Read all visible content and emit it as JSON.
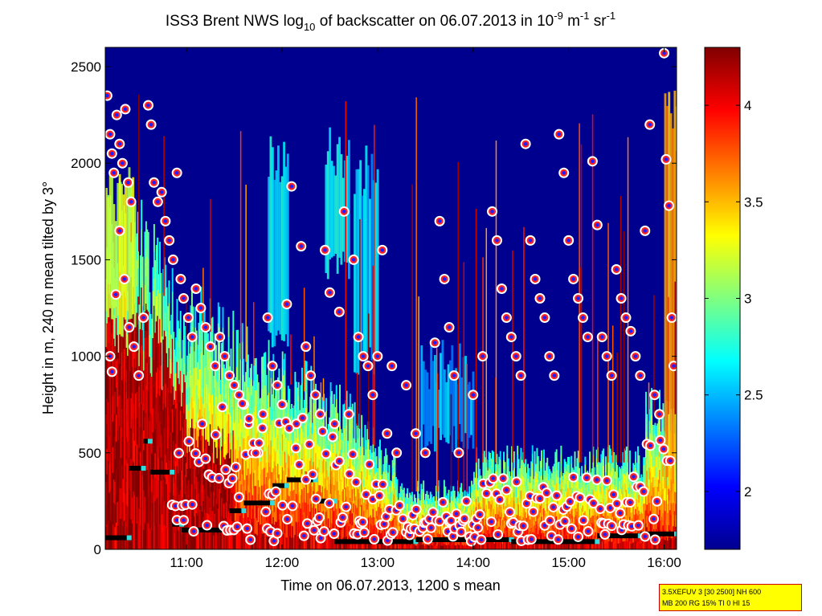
{
  "chart_data": {
    "type": "heatmap",
    "title": {
      "prefix": "ISS3 Brent NWS log",
      "sub": "10",
      "middle": " of backscatter on 06.07.2013 in 10",
      "sup1": "-9",
      "unit_m": " m",
      "sup2": "-1",
      "unit_sr": " sr",
      "sup3": "-1"
    },
    "xlabel": "Time on 06.07.2013, 1200 s mean",
    "ylabel": "Height in m, 240 m mean tilted by 3°",
    "x_range_hours": [
      10.15,
      16.13
    ],
    "x_ticks": [
      {
        "value": 11,
        "label": "11:00"
      },
      {
        "value": 12,
        "label": "12:00"
      },
      {
        "value": 13,
        "label": "13:00"
      },
      {
        "value": 14,
        "label": "14:00"
      },
      {
        "value": 15,
        "label": "15:00"
      },
      {
        "value": 16,
        "label": "16:00"
      }
    ],
    "ylim": [
      0,
      2600
    ],
    "y_ticks": [
      0,
      500,
      1000,
      1500,
      2000,
      2500
    ],
    "colorbar": {
      "range": [
        1.7,
        4.3
      ],
      "ticks": [
        2,
        2.5,
        3,
        3.5,
        4
      ],
      "tick_labels": [
        "2",
        "2.5",
        "3",
        "3.5",
        "4"
      ],
      "colormap": "jet"
    },
    "mixing_layer_steps": [
      {
        "x0": 10.15,
        "x1": 10.4,
        "y": 60
      },
      {
        "x0": 10.4,
        "x1": 10.55,
        "y": 420
      },
      {
        "x0": 10.55,
        "x1": 10.62,
        "y": 560
      },
      {
        "x0": 10.62,
        "x1": 10.85,
        "y": 400
      },
      {
        "x0": 10.85,
        "x1": 10.95,
        "y": 130
      },
      {
        "x0": 10.95,
        "x1": 11.45,
        "y": 100
      },
      {
        "x0": 11.45,
        "x1": 11.6,
        "y": 200
      },
      {
        "x0": 11.6,
        "x1": 11.9,
        "y": 240
      },
      {
        "x0": 11.9,
        "x1": 12.05,
        "y": 330
      },
      {
        "x0": 12.05,
        "x1": 12.35,
        "y": 360
      },
      {
        "x0": 12.35,
        "x1": 12.55,
        "y": 250
      },
      {
        "x0": 12.55,
        "x1": 13.4,
        "y": 40
      },
      {
        "x0": 13.4,
        "x1": 14.4,
        "y": 50
      },
      {
        "x0": 14.4,
        "x1": 15.3,
        "y": 40
      },
      {
        "x0": 15.3,
        "x1": 15.75,
        "y": 70
      },
      {
        "x0": 15.75,
        "x1": 16.13,
        "y": 80
      }
    ],
    "cloud_markers": [
      [
        10.17,
        2350
      ],
      [
        10.2,
        2150
      ],
      [
        10.22,
        2050
      ],
      [
        10.24,
        1950
      ],
      [
        10.27,
        2250
      ],
      [
        10.3,
        2100
      ],
      [
        10.33,
        2000
      ],
      [
        10.36,
        2280
      ],
      [
        10.39,
        1900
      ],
      [
        10.42,
        1800
      ],
      [
        10.2,
        1000
      ],
      [
        10.22,
        920
      ],
      [
        10.26,
        1320
      ],
      [
        10.3,
        1650
      ],
      [
        10.35,
        1400
      ],
      [
        10.4,
        1150
      ],
      [
        10.45,
        1050
      ],
      [
        10.5,
        900
      ],
      [
        10.55,
        1200
      ],
      [
        10.6,
        2300
      ],
      [
        10.63,
        2200
      ],
      [
        10.66,
        1900
      ],
      [
        10.7,
        1800
      ],
      [
        10.74,
        1850
      ],
      [
        10.78,
        1700
      ],
      [
        10.82,
        1600
      ],
      [
        10.86,
        1500
      ],
      [
        10.9,
        1950
      ],
      [
        10.94,
        1400
      ],
      [
        10.97,
        1300
      ],
      [
        11.02,
        1200
      ],
      [
        11.06,
        1100
      ],
      [
        11.1,
        1350
      ],
      [
        11.15,
        1250
      ],
      [
        11.2,
        1150
      ],
      [
        11.25,
        1050
      ],
      [
        11.3,
        950
      ],
      [
        11.35,
        1100
      ],
      [
        11.4,
        1000
      ],
      [
        11.45,
        900
      ],
      [
        11.5,
        850
      ],
      [
        11.55,
        800
      ],
      [
        11.6,
        750
      ],
      [
        11.65,
        650
      ],
      [
        11.7,
        550
      ],
      [
        11.75,
        500
      ],
      [
        11.8,
        700
      ],
      [
        11.85,
        1200
      ],
      [
        11.9,
        950
      ],
      [
        11.95,
        850
      ],
      [
        12.0,
        750
      ],
      [
        12.05,
        1270
      ],
      [
        12.1,
        1880
      ],
      [
        12.15,
        650
      ],
      [
        12.2,
        1570
      ],
      [
        12.25,
        1050
      ],
      [
        12.3,
        900
      ],
      [
        12.35,
        800
      ],
      [
        12.4,
        700
      ],
      [
        12.45,
        1550
      ],
      [
        12.5,
        1330
      ],
      [
        12.55,
        650
      ],
      [
        12.6,
        1230
      ],
      [
        12.65,
        1750
      ],
      [
        12.7,
        700
      ],
      [
        12.75,
        1500
      ],
      [
        12.8,
        1100
      ],
      [
        12.85,
        1000
      ],
      [
        12.9,
        950
      ],
      [
        12.95,
        800
      ],
      [
        13.0,
        1000
      ],
      [
        13.05,
        1550
      ],
      [
        13.1,
        600
      ],
      [
        13.15,
        950
      ],
      [
        13.2,
        500
      ],
      [
        13.3,
        850
      ],
      [
        13.4,
        600
      ],
      [
        13.5,
        500
      ],
      [
        13.6,
        1070
      ],
      [
        13.65,
        1700
      ],
      [
        13.7,
        1400
      ],
      [
        13.75,
        1150
      ],
      [
        13.8,
        900
      ],
      [
        13.85,
        500
      ],
      [
        14.0,
        800
      ],
      [
        14.1,
        1000
      ],
      [
        14.2,
        1750
      ],
      [
        14.25,
        1600
      ],
      [
        14.3,
        1350
      ],
      [
        14.35,
        1200
      ],
      [
        14.4,
        1100
      ],
      [
        14.45,
        1000
      ],
      [
        14.5,
        900
      ],
      [
        14.55,
        2100
      ],
      [
        14.6,
        1600
      ],
      [
        14.65,
        1400
      ],
      [
        14.7,
        1300
      ],
      [
        14.75,
        1200
      ],
      [
        14.8,
        1000
      ],
      [
        14.85,
        900
      ],
      [
        14.9,
        2150
      ],
      [
        14.95,
        1950
      ],
      [
        15.0,
        1600
      ],
      [
        15.05,
        1400
      ],
      [
        15.1,
        1300
      ],
      [
        15.15,
        1200
      ],
      [
        15.2,
        1100
      ],
      [
        15.25,
        2010
      ],
      [
        15.3,
        1680
      ],
      [
        15.35,
        1100
      ],
      [
        15.4,
        1000
      ],
      [
        15.45,
        900
      ],
      [
        15.5,
        1450
      ],
      [
        15.55,
        1300
      ],
      [
        15.6,
        1200
      ],
      [
        15.65,
        1130
      ],
      [
        15.7,
        1000
      ],
      [
        15.75,
        900
      ],
      [
        15.8,
        1650
      ],
      [
        15.85,
        2200
      ],
      [
        15.9,
        800
      ],
      [
        15.95,
        700
      ],
      [
        16.0,
        2570
      ],
      [
        16.02,
        2020
      ],
      [
        16.05,
        1780
      ],
      [
        16.08,
        1200
      ],
      [
        16.1,
        950
      ]
    ],
    "low_markers_hint": "dense cloud-base / aerosol markers 0-700 m"
  },
  "info_box": {
    "line1": "3.5XEFUV 3 [30 2500] NH 600",
    "line2": "MB 200 RG 15% TI 0 HI 15"
  }
}
